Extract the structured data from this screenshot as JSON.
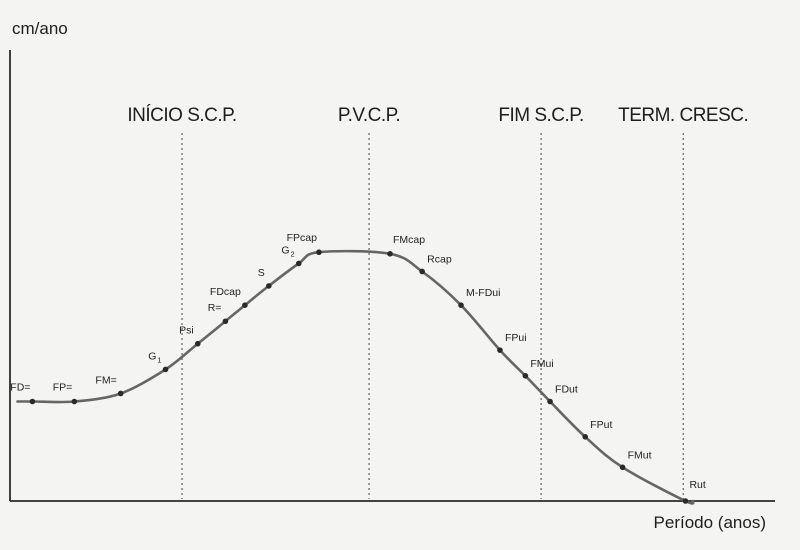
{
  "chart_data": {
    "type": "line",
    "title": "",
    "ylabel": "cm/ano",
    "xlabel": "Período (anos)",
    "xlim": [
      0,
      100
    ],
    "ylim": [
      0,
      100
    ],
    "grid": false,
    "phases": [
      {
        "label": "INÍCIO S.C.P.",
        "x": 23
      },
      {
        "label": "P.V.C.P.",
        "x": 48
      },
      {
        "label": "FIM S.C.P.",
        "x": 71
      },
      {
        "label": "TERM. CRESC.",
        "x": 90
      }
    ],
    "points": [
      {
        "label": "FD=",
        "sub": "",
        "x": 3,
        "y": 31
      },
      {
        "label": "FP=",
        "sub": "",
        "x": 8.6,
        "y": 31
      },
      {
        "label": "FM=",
        "sub": "",
        "x": 14.8,
        "y": 33.5
      },
      {
        "label": "G",
        "sub": "1",
        "x": 20.8,
        "y": 41
      },
      {
        "label": "Psi",
        "sub": "",
        "x": 25.1,
        "y": 49
      },
      {
        "label": "R=",
        "sub": "",
        "x": 28.8,
        "y": 56
      },
      {
        "label": "FDcap",
        "sub": "",
        "x": 31.4,
        "y": 61
      },
      {
        "label": "S",
        "sub": "",
        "x": 34.6,
        "y": 67
      },
      {
        "label": "G",
        "sub": "2",
        "x": 38.6,
        "y": 74
      },
      {
        "label": "FPcap",
        "sub": "",
        "x": 41.3,
        "y": 77.5
      },
      {
        "label": "FMcap",
        "sub": "",
        "x": 50.8,
        "y": 77
      },
      {
        "label": "Rcap",
        "sub": "",
        "x": 55.1,
        "y": 71.5
      },
      {
        "label": "M-FDui",
        "sub": "",
        "x": 60.3,
        "y": 61
      },
      {
        "label": "FPui",
        "sub": "",
        "x": 65.5,
        "y": 47
      },
      {
        "label": "FMui",
        "sub": "",
        "x": 68.9,
        "y": 39
      },
      {
        "label": "FDut",
        "sub": "",
        "x": 72.2,
        "y": 31
      },
      {
        "label": "FPut",
        "sub": "",
        "x": 76.9,
        "y": 20
      },
      {
        "label": "FMut",
        "sub": "",
        "x": 81.9,
        "y": 10.5
      },
      {
        "label": "Rut",
        "sub": "",
        "x": 90.3,
        "y": 0
      }
    ]
  }
}
